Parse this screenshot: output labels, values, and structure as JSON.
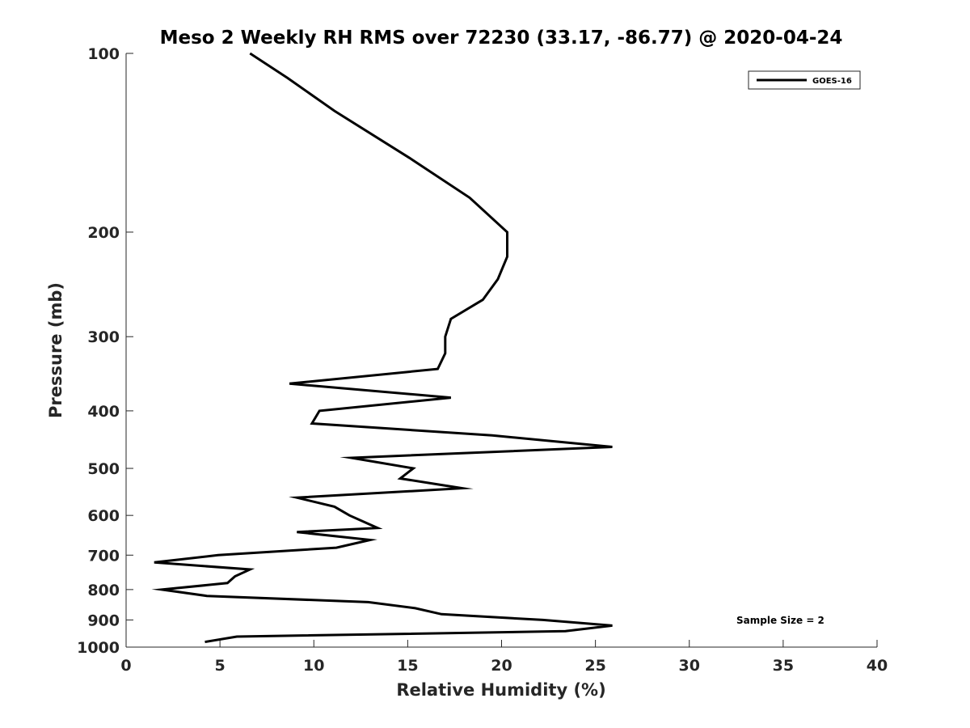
{
  "chart_data": {
    "type": "line",
    "title": "Meso 2 Weekly RH RMS over 72230 (33.17, -86.77) @ 2020-04-24",
    "xlabel": "Relative Humidity (%)",
    "ylabel": "Pressure (mb)",
    "xlim": [
      0,
      40
    ],
    "ylim": [
      1000,
      100
    ],
    "y_scale": "log",
    "x_ticks": [
      0,
      5,
      10,
      15,
      20,
      25,
      30,
      35,
      40
    ],
    "y_ticks": [
      100,
      200,
      300,
      400,
      500,
      600,
      700,
      800,
      900,
      1000
    ],
    "grid": false,
    "legend": {
      "placement": "top-right",
      "entries": [
        "GOES-16"
      ]
    },
    "annotation": "Sample Size = 2",
    "series": [
      {
        "name": "GOES-16",
        "color": "#000000",
        "points": [
          [
            4.2,
            980
          ],
          [
            5.9,
            960
          ],
          [
            23.4,
            940
          ],
          [
            25.9,
            920
          ],
          [
            22.2,
            900
          ],
          [
            16.8,
            880
          ],
          [
            15.4,
            860
          ],
          [
            12.9,
            840
          ],
          [
            4.3,
            820
          ],
          [
            1.9,
            800
          ],
          [
            5.4,
            780
          ],
          [
            5.8,
            760
          ],
          [
            6.6,
            740
          ],
          [
            1.5,
            720
          ],
          [
            4.9,
            700
          ],
          [
            11.2,
            680
          ],
          [
            13.0,
            660
          ],
          [
            9.1,
            640
          ],
          [
            13.4,
            630
          ],
          [
            11.9,
            600
          ],
          [
            11.1,
            580
          ],
          [
            9.1,
            560
          ],
          [
            17.9,
            540
          ],
          [
            14.6,
            520
          ],
          [
            15.3,
            500
          ],
          [
            12.0,
            480
          ],
          [
            25.9,
            460
          ],
          [
            19.5,
            440
          ],
          [
            9.9,
            420
          ],
          [
            10.3,
            400
          ],
          [
            17.3,
            380
          ],
          [
            8.7,
            360
          ],
          [
            16.6,
            340
          ],
          [
            17.0,
            320
          ],
          [
            17.0,
            300
          ],
          [
            17.3,
            280
          ],
          [
            19.0,
            260
          ],
          [
            19.8,
            240
          ],
          [
            20.3,
            220
          ],
          [
            20.3,
            200
          ],
          [
            18.3,
            175
          ],
          [
            15.1,
            150
          ],
          [
            11.1,
            125
          ],
          [
            8.6,
            110
          ],
          [
            6.6,
            100
          ]
        ]
      }
    ]
  }
}
